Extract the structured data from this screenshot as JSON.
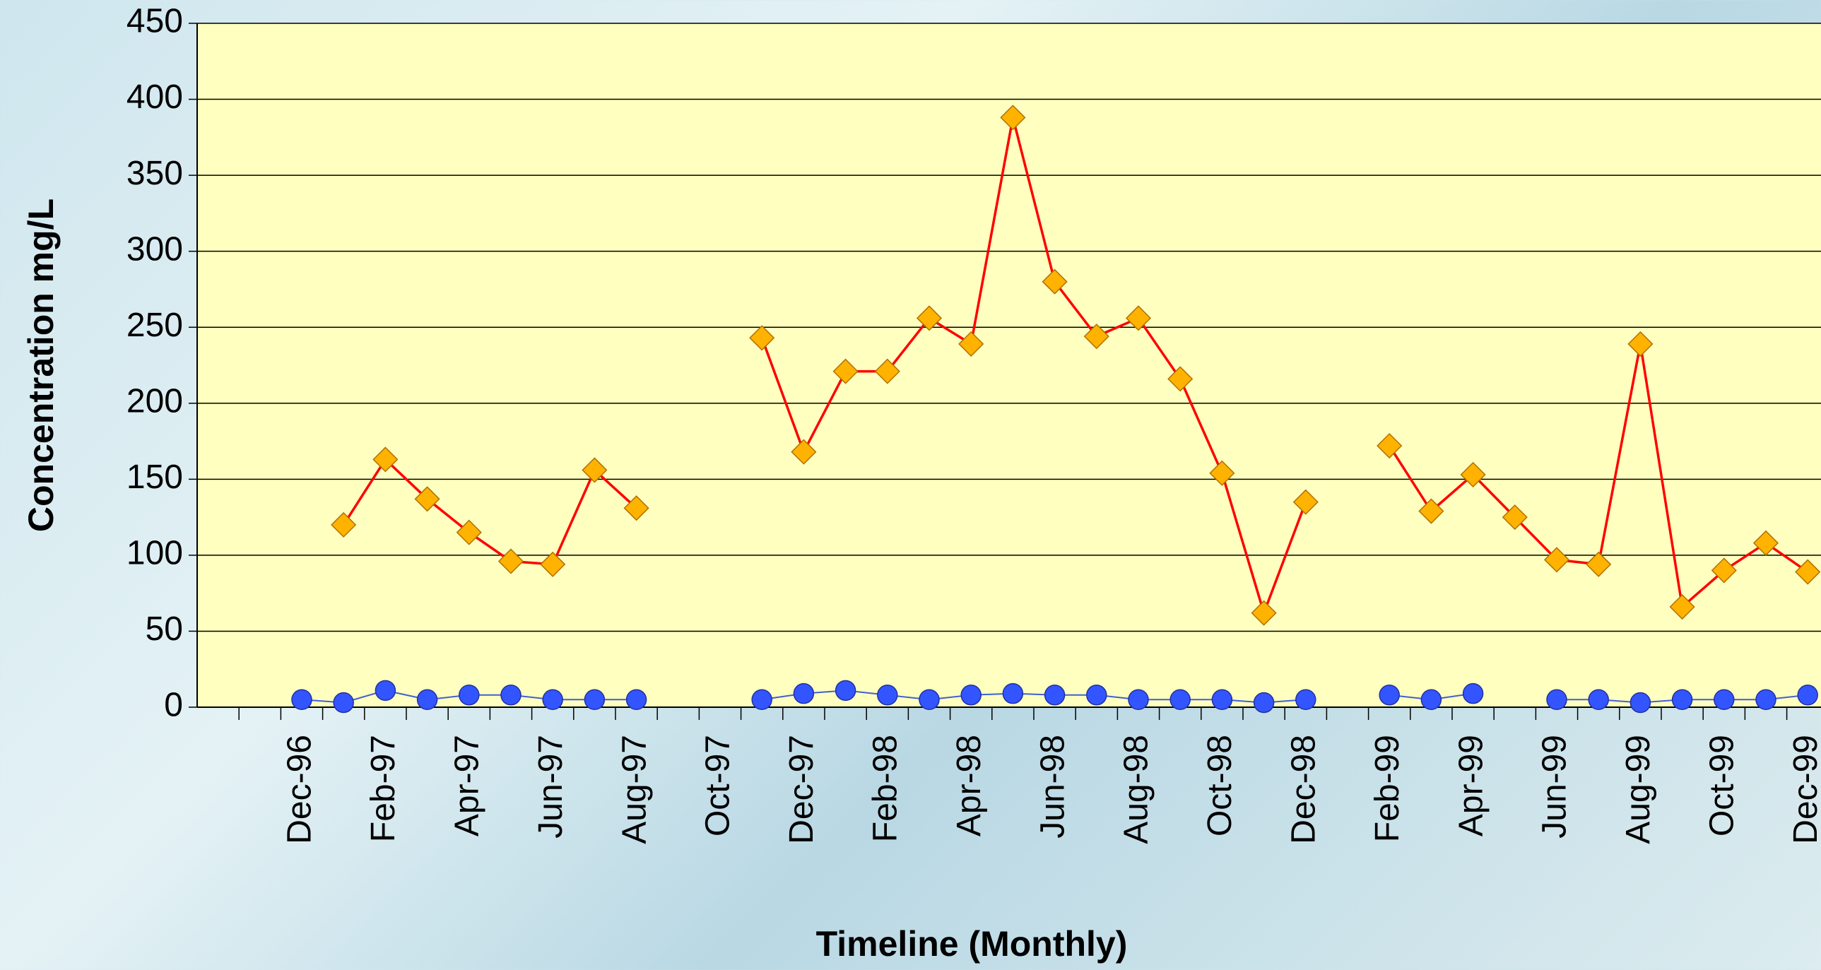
{
  "chart_data": {
    "type": "line",
    "y_label": "Concentration mg/L",
    "x_label": "Timeline (Monthly)",
    "categories": [
      null,
      null,
      "Dec-96",
      null,
      "Feb-97",
      null,
      "Apr-97",
      null,
      "Jun-97",
      null,
      "Aug-97",
      null,
      "Oct-97",
      null,
      "Dec-97",
      null,
      "Feb-98",
      null,
      "Apr-98",
      null,
      "Jun-98",
      null,
      "Aug-98",
      null,
      "Oct-98",
      null,
      "Dec-98",
      null,
      "Feb-99",
      null,
      "Apr-99",
      null,
      "Jun-99",
      null,
      "Aug-99",
      null,
      "Oct-99",
      null,
      "Dec-99"
    ],
    "series": [
      {
        "color": "#ffb300",
        "line_color": "#ff0000",
        "marker": "diamond",
        "values": [
          null,
          null,
          null,
          120,
          163,
          137,
          115,
          96,
          94,
          156,
          131,
          null,
          null,
          243,
          168,
          221,
          221,
          256,
          239,
          388,
          280,
          244,
          256,
          216,
          154,
          62,
          135,
          null,
          172,
          129,
          153,
          125,
          97,
          94,
          239,
          66,
          90,
          108,
          89
        ]
      },
      {
        "color": "#3355ff",
        "line_color": "#4060d0",
        "marker": "circle",
        "values": [
          null,
          null,
          5,
          3,
          11,
          5,
          8,
          8,
          5,
          5,
          5,
          null,
          null,
          5,
          9,
          11,
          8,
          5,
          8,
          9,
          8,
          8,
          5,
          5,
          5,
          3,
          5,
          null,
          8,
          5,
          9,
          null,
          5,
          5,
          3,
          5,
          5,
          5,
          8
        ]
      }
    ],
    "ylim": [
      0,
      450
    ],
    "yticks": [
      0,
      50,
      100,
      150,
      200,
      250,
      300,
      350,
      400,
      450
    ],
    "grid": true
  }
}
